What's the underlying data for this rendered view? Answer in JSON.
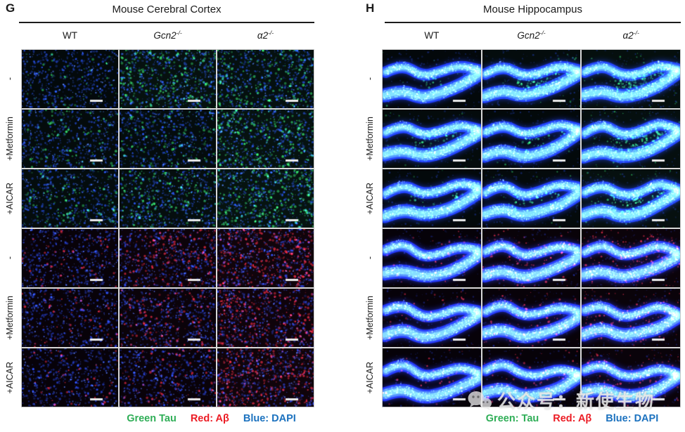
{
  "figure": {
    "panels": [
      {
        "key": "G",
        "label": "G",
        "title": "Mouse Cerebral Cortex",
        "tissue": "cortex",
        "columns": [
          {
            "name": "WT",
            "base": "WT",
            "sup": "",
            "italic": false
          },
          {
            "name": "Gcn2-/-",
            "base": "Gcn2",
            "sup": "-/-",
            "italic": true
          },
          {
            "name": "α2-/-",
            "base": "α2",
            "sup": "-/-",
            "italic": true
          }
        ],
        "rows": [
          {
            "label": "-",
            "stain": "green"
          },
          {
            "label": "+Metformin",
            "stain": "green"
          },
          {
            "label": "+AICAR",
            "stain": "green"
          },
          {
            "label": "-",
            "stain": "red"
          },
          {
            "label": "+Metformin",
            "stain": "red"
          },
          {
            "label": "+AICAR",
            "stain": "red"
          }
        ],
        "cells": [
          [
            {
              "green": 0.12,
              "red": 0
            },
            {
              "green": 0.55,
              "red": 0
            },
            {
              "green": 0.5,
              "red": 0
            }
          ],
          [
            {
              "green": 0.25,
              "red": 0
            },
            {
              "green": 0.3,
              "red": 0
            },
            {
              "green": 0.62,
              "red": 0
            }
          ],
          [
            {
              "green": 0.3,
              "red": 0
            },
            {
              "green": 0.42,
              "red": 0
            },
            {
              "green": 0.66,
              "red": 0
            }
          ],
          [
            {
              "green": 0,
              "red": 0.16
            },
            {
              "green": 0,
              "red": 0.45
            },
            {
              "green": 0,
              "red": 0.7
            }
          ],
          [
            {
              "green": 0,
              "red": 0.15
            },
            {
              "green": 0,
              "red": 0.32
            },
            {
              "green": 0,
              "red": 0.6
            }
          ],
          [
            {
              "green": 0,
              "red": 0.12
            },
            {
              "green": 0,
              "red": 0.22
            },
            {
              "green": 0,
              "red": 0.7
            }
          ]
        ],
        "legend": [
          {
            "text": "Green Tau",
            "color": "#2fae57"
          },
          {
            "text": "Red: Aβ",
            "color": "#ec1c24"
          },
          {
            "text": "Blue: DAPI",
            "color": "#1c72bf"
          }
        ]
      },
      {
        "key": "H",
        "label": "H",
        "title": "Mouse Hippocampus",
        "tissue": "hippocampus",
        "columns": [
          {
            "name": "WT",
            "base": "WT",
            "sup": "",
            "italic": false
          },
          {
            "name": "Gcn2-/-",
            "base": "Gcn2",
            "sup": "-/-",
            "italic": true
          },
          {
            "name": "α2-/-",
            "base": "α2",
            "sup": "-/-",
            "italic": true
          }
        ],
        "rows": [
          {
            "label": "-",
            "stain": "green"
          },
          {
            "label": "+Metformin",
            "stain": "green"
          },
          {
            "label": "+AICAR",
            "stain": "green"
          },
          {
            "label": "-",
            "stain": "red"
          },
          {
            "label": "+Metformin",
            "stain": "red"
          },
          {
            "label": "+AICAR",
            "stain": "red"
          }
        ],
        "cells": [
          [
            {
              "green": 0.1,
              "red": 0
            },
            {
              "green": 0.35,
              "red": 0
            },
            {
              "green": 0.52,
              "red": 0
            }
          ],
          [
            {
              "green": 0.28,
              "red": 0
            },
            {
              "green": 0.15,
              "red": 0
            },
            {
              "green": 0.55,
              "red": 0
            }
          ],
          [
            {
              "green": 0.15,
              "red": 0
            },
            {
              "green": 0.22,
              "red": 0
            },
            {
              "green": 0.6,
              "red": 0
            }
          ],
          [
            {
              "green": 0,
              "red": 0.15
            },
            {
              "green": 0,
              "red": 0.42
            },
            {
              "green": 0,
              "red": 0.55
            }
          ],
          [
            {
              "green": 0,
              "red": 0.2
            },
            {
              "green": 0,
              "red": 0.3
            },
            {
              "green": 0,
              "red": 0.45
            }
          ],
          [
            {
              "green": 0,
              "red": 0.15
            },
            {
              "green": 0,
              "red": 0.26
            },
            {
              "green": 0,
              "red": 0.5
            }
          ]
        ],
        "legend": [
          {
            "text": "Green: Tau",
            "color": "#2fae57"
          },
          {
            "text": "Red: Aβ",
            "color": "#ec1c24"
          },
          {
            "text": "Blue: DAPI",
            "color": "#1c72bf"
          }
        ]
      }
    ],
    "stain_colors": {
      "tau_green": "#2fae57",
      "abeta_red": "#ec1c24",
      "dapi_blue": "#1c72bf",
      "scalebar_white": "#ececec"
    },
    "watermark": {
      "icon": "wechat-icon",
      "text": "公众号：新使生物"
    }
  }
}
